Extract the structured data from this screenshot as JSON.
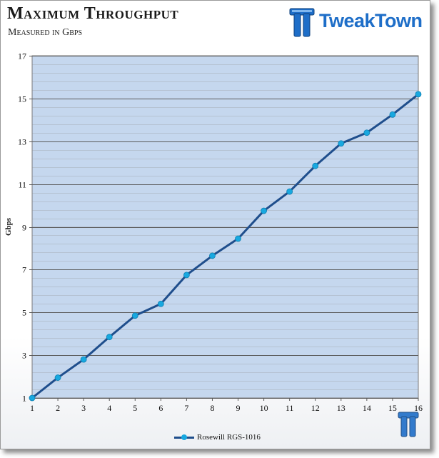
{
  "header": {
    "title": "Maximum Throughput",
    "subtitle": "Measured in Gbps",
    "logo_text": "TweakTown"
  },
  "colors": {
    "plot_background": "#c5d7ee",
    "line": "#1f4e8c",
    "marker": "#18a8e0",
    "grid": "#8a8a8a",
    "logo_blue": "#1e6ec8"
  },
  "chart_data": {
    "type": "line",
    "title": "Maximum Throughput",
    "subtitle": "Measured in Gbps",
    "xlabel": "",
    "ylabel": "Gbps",
    "x": [
      1,
      2,
      3,
      4,
      5,
      6,
      7,
      8,
      9,
      10,
      11,
      12,
      13,
      14,
      15,
      16
    ],
    "xlim": [
      1,
      16
    ],
    "ylim": [
      1,
      17
    ],
    "y_ticks": [
      1,
      3,
      5,
      7,
      9,
      11,
      13,
      15,
      17
    ],
    "y_minor_step": 0.4,
    "grid": true,
    "legend_position": "bottom",
    "series": [
      {
        "name": "Rosewill RGS-1016",
        "values": [
          1.0,
          1.95,
          2.8,
          3.85,
          4.85,
          5.4,
          6.75,
          7.65,
          8.45,
          9.75,
          10.65,
          11.85,
          12.9,
          13.4,
          14.25,
          15.2
        ]
      }
    ]
  }
}
